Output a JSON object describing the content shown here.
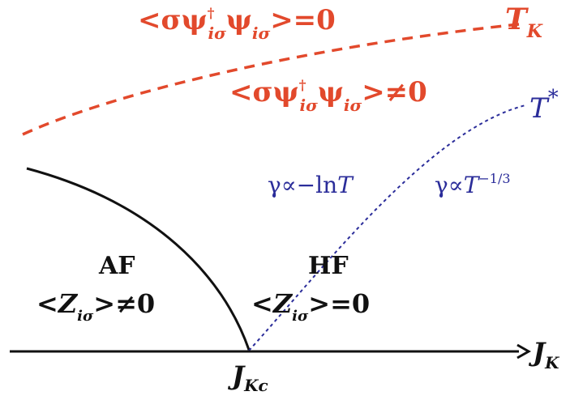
{
  "colors": {
    "red": "#e2492c",
    "blue": "#2b2d9a",
    "black": "#111111"
  },
  "labels": {
    "top_left": {
      "lt": "<",
      "sigma": "σ",
      "psi1": "ψ",
      "dagger": "†",
      "sub1": "iσ",
      "psi2": "ψ",
      "sub2": "iσ",
      "rest": ">=0"
    },
    "mid": {
      "lt": "<",
      "sigma": "σ",
      "psi1": "ψ",
      "dagger": "†",
      "sub1": "iσ",
      "psi2": "ψ",
      "sub2": "iσ",
      "rest": ">≠0"
    },
    "tk": {
      "main": "T",
      "sub": "K"
    },
    "tstar": {
      "main": "T",
      "sup": "*"
    },
    "gamma_ln": {
      "gamma": "γ",
      "rest": "∝−ln",
      "T": "T"
    },
    "gamma_pow": {
      "gamma": "γ",
      "prop": "∝",
      "T": "T",
      "sup": "−1/3"
    },
    "af": "AF",
    "hf": "HF",
    "z_af": {
      "lt": "<",
      "Z": "Z",
      "sub": "iσ",
      "rest": ">≠0"
    },
    "z_hf": {
      "lt": "<",
      "Z": "Z",
      "sub": "iσ",
      "rest": ">=0"
    },
    "jkc": {
      "main": "J",
      "sub": "Kc"
    },
    "jk": {
      "main": "J",
      "sub": "K"
    }
  }
}
